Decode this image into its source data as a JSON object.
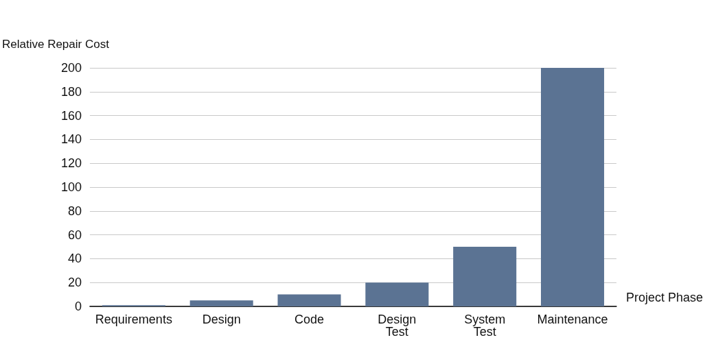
{
  "chart_data": {
    "type": "bar",
    "xlabel": "Project Phase",
    "ylabel": "Relative Repair Cost",
    "categories": [
      "Requirements",
      "Design",
      "Code",
      "Design Test",
      "System Test",
      "Maintenance"
    ],
    "values": [
      1,
      5,
      10,
      20,
      50,
      200
    ],
    "color": "#5b7393",
    "ylim": [
      0,
      200
    ],
    "yticks": [
      0,
      20,
      40,
      60,
      80,
      100,
      120,
      140,
      160,
      180,
      200
    ],
    "grid": "y"
  }
}
